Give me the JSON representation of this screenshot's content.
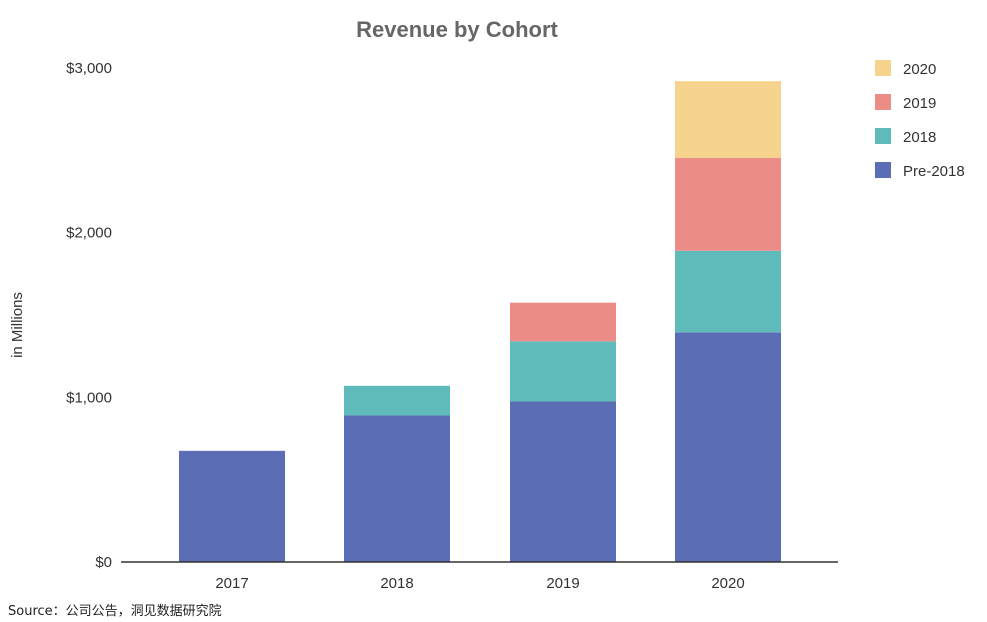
{
  "chart_data": {
    "type": "bar",
    "stacked": true,
    "title": "Revenue by Cohort",
    "xlabel": "",
    "ylabel": "in Millions",
    "categories": [
      "2017",
      "2018",
      "2019",
      "2020"
    ],
    "series": [
      {
        "name": "Pre-2018",
        "color": "#5B6DB5",
        "values": [
          675,
          890,
          975,
          1395
        ]
      },
      {
        "name": "2018",
        "color": "#5FBABA",
        "values": [
          0,
          180,
          365,
          495
        ]
      },
      {
        "name": "2019",
        "color": "#EC8C86",
        "values": [
          0,
          0,
          235,
          565
        ]
      },
      {
        "name": "2020",
        "color": "#F6D48D",
        "values": [
          0,
          0,
          0,
          465
        ]
      }
    ],
    "ylim": [
      0,
      3000
    ],
    "yticks": [
      0,
      1000,
      2000,
      3000
    ],
    "ytick_labels": [
      "$0",
      "$1,000",
      "$2,000",
      "$3,000"
    ],
    "grid": false,
    "legend": {
      "position": "top-right",
      "order": [
        "2020",
        "2019",
        "2018",
        "Pre-2018"
      ]
    }
  },
  "source_note": "Source：公司公告，洞见数据研究院",
  "colors": {
    "title": "#666666",
    "axis_text": "#333333",
    "axis_line": "#333333"
  }
}
